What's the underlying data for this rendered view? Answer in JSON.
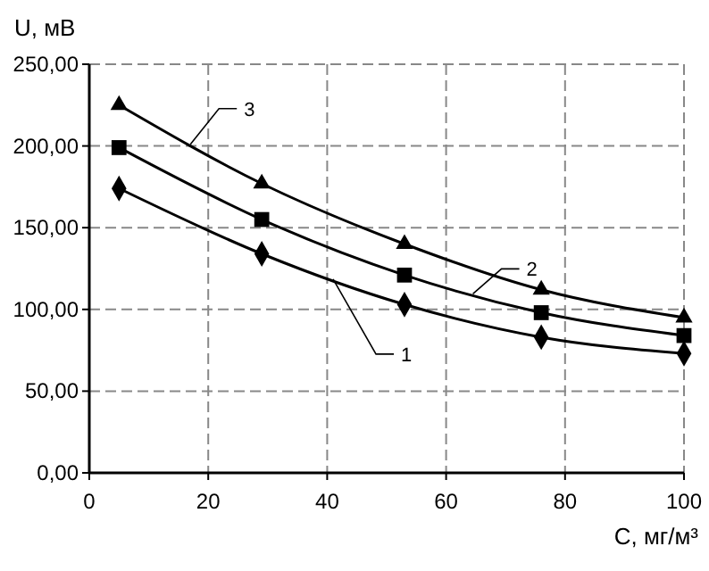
{
  "chart_data": {
    "type": "line",
    "xlabel": "C, мг/м³",
    "ylabel": "U, мВ",
    "x": [
      5,
      29,
      53,
      76,
      100
    ],
    "series": [
      {
        "name": "1",
        "color": "#000000",
        "marker": "diamond",
        "values": [
          174,
          134,
          103,
          83,
          73
        ]
      },
      {
        "name": "2",
        "color": "#000000",
        "marker": "square",
        "values": [
          199,
          155,
          121,
          98,
          84
        ]
      },
      {
        "name": "3",
        "color": "#000000",
        "marker": "triangle",
        "values": [
          225,
          177,
          140,
          112,
          95
        ]
      }
    ],
    "xlim": [
      0,
      100
    ],
    "xticks": [
      0,
      20,
      40,
      60,
      80,
      100
    ],
    "ylim": [
      0,
      250
    ],
    "yticks": [
      {
        "value": 0,
        "label": "0,00"
      },
      {
        "value": 50,
        "label": "50,00"
      },
      {
        "value": 100,
        "label": "100,00"
      },
      {
        "value": 150,
        "label": "150,00"
      },
      {
        "value": 200,
        "label": "200,00"
      },
      {
        "value": 250,
        "label": "250,00"
      }
    ],
    "grid": true,
    "line_style": "solid"
  }
}
